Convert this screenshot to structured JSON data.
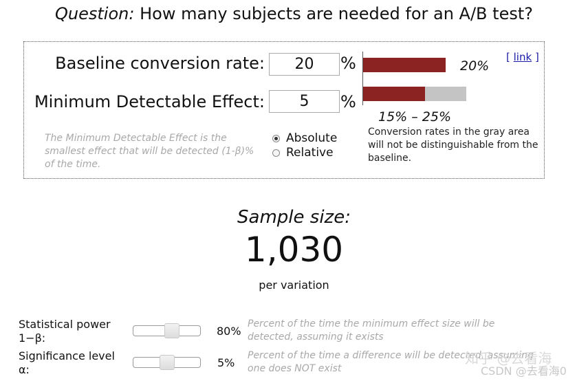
{
  "question": {
    "label": "Question:",
    "text": "How many subjects are needed for an A/B test?"
  },
  "inputs": {
    "baseline": {
      "label": "Baseline conversion rate:",
      "value": "20",
      "unit": "%"
    },
    "mde": {
      "label": "Minimum Detectable Effect:",
      "value": "5",
      "unit": "%"
    }
  },
  "visual": {
    "baseline_rate": 0.2,
    "range_low": 0.15,
    "range_high": 0.25,
    "baseline_label": "20%",
    "range_label": "15% – 25%",
    "colors": {
      "red": "#8b2323",
      "gray": "#c4c4c4"
    }
  },
  "link": {
    "open": "[",
    "text": "link",
    "close": "]"
  },
  "gray_note": "Conversion rates in the gray area will not be distinguishable from the baseline.",
  "mde_help": "The Minimum Detectable Effect is the smallest effect that will be detected (1-β)% of the time.",
  "mode": {
    "options": [
      {
        "label": "Absolute",
        "checked": true
      },
      {
        "label": "Relative",
        "checked": false
      }
    ]
  },
  "result": {
    "label": "Sample size:",
    "value": "1,030",
    "unit": "per variation"
  },
  "params": {
    "power": {
      "label_line1": "Statistical power",
      "label_line2": "1−β:",
      "value": "80%",
      "level": 0.8,
      "help": "Percent of the time the minimum effect size will be detected, assuming it exists"
    },
    "significance": {
      "label_line1": "Significance level",
      "label_line2": "α:",
      "value": "5%",
      "level": 0.05,
      "help": "Percent of the time a difference will be detected, assuming one does NOT exist"
    }
  },
  "watermark": {
    "line1": "知乎 @去看海",
    "line2": "CSDN @去看海0"
  }
}
